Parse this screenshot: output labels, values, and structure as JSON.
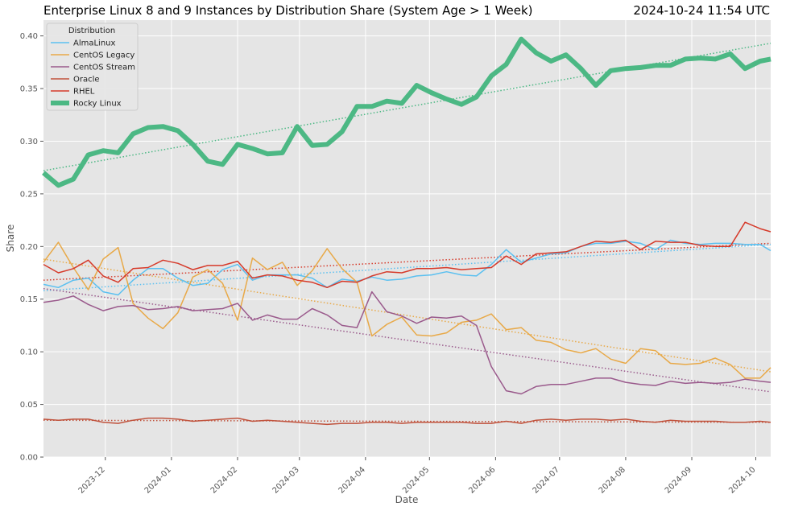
{
  "chart_data": {
    "type": "line",
    "title": "Enterprise Linux 8 and 9 Instances by Distribution Share (System Age > 1 Week)",
    "timestamp": "2024-10-24 11:54 UTC",
    "xlabel": "Date",
    "ylabel": "Share",
    "xlim": [
      "2023-11-02",
      "2024-10-08"
    ],
    "ylim": [
      0,
      0.415
    ],
    "x_ticks": [
      "2023-12",
      "2024-01",
      "2024-02",
      "2024-03",
      "2024-04",
      "2024-05",
      "2024-06",
      "2024-07",
      "2024-08",
      "2024-09",
      "2024-10"
    ],
    "y_ticks": [
      "0.00",
      "0.05",
      "0.10",
      "0.15",
      "0.20",
      "0.25",
      "0.30",
      "0.35",
      "0.40"
    ],
    "grid": true,
    "legend": {
      "title": "Distribution",
      "position": "top-left"
    },
    "x": [
      "2023-11-02",
      "2023-11-09",
      "2023-11-16",
      "2023-11-23",
      "2023-11-30",
      "2023-12-07",
      "2023-12-14",
      "2023-12-21",
      "2023-12-28",
      "2024-01-04",
      "2024-01-11",
      "2024-01-18",
      "2024-01-25",
      "2024-02-01",
      "2024-02-08",
      "2024-02-15",
      "2024-02-22",
      "2024-02-29",
      "2024-03-07",
      "2024-03-14",
      "2024-03-21",
      "2024-03-28",
      "2024-04-04",
      "2024-04-11",
      "2024-04-18",
      "2024-04-25",
      "2024-05-02",
      "2024-05-09",
      "2024-05-16",
      "2024-05-23",
      "2024-05-30",
      "2024-06-06",
      "2024-06-13",
      "2024-06-20",
      "2024-06-27",
      "2024-07-04",
      "2024-07-11",
      "2024-07-18",
      "2024-07-25",
      "2024-08-01",
      "2024-08-08",
      "2024-08-15",
      "2024-08-22",
      "2024-08-29",
      "2024-09-05",
      "2024-09-12",
      "2024-09-19",
      "2024-09-26",
      "2024-10-03",
      "2024-10-08"
    ],
    "series": [
      {
        "name": "AlmaLinux",
        "color": "#5bc0f0",
        "width": 1.5,
        "values": [
          0.164,
          0.161,
          0.168,
          0.17,
          0.157,
          0.154,
          0.168,
          0.179,
          0.179,
          0.17,
          0.163,
          0.165,
          0.178,
          0.183,
          0.168,
          0.173,
          0.173,
          0.173,
          0.17,
          0.161,
          0.169,
          0.167,
          0.171,
          0.168,
          0.169,
          0.172,
          0.173,
          0.176,
          0.173,
          0.172,
          0.183,
          0.197,
          0.185,
          0.189,
          0.193,
          0.194,
          0.2,
          0.203,
          0.203,
          0.205,
          0.203,
          0.197,
          0.206,
          0.203,
          0.202,
          0.203,
          0.203,
          0.202,
          0.202,
          0.196
        ],
        "trend": [
          0.158,
          0.202
        ]
      },
      {
        "name": "CentOS Legacy",
        "color": "#e8a948",
        "width": 1.5,
        "values": [
          0.185,
          0.204,
          0.18,
          0.159,
          0.188,
          0.199,
          0.146,
          0.132,
          0.122,
          0.137,
          0.171,
          0.178,
          0.165,
          0.13,
          0.189,
          0.178,
          0.185,
          0.163,
          0.177,
          0.198,
          0.179,
          0.166,
          0.115,
          0.126,
          0.133,
          0.116,
          0.115,
          0.118,
          0.128,
          0.13,
          0.136,
          0.121,
          0.123,
          0.111,
          0.109,
          0.102,
          0.099,
          0.103,
          0.093,
          0.089,
          0.103,
          0.101,
          0.089,
          0.088,
          0.089,
          0.094,
          0.088,
          0.075,
          0.075,
          0.085
        ],
        "trend": [
          0.188,
          0.081
        ]
      },
      {
        "name": "CentOS Stream",
        "color": "#9a5a8c",
        "width": 1.5,
        "values": [
          0.147,
          0.149,
          0.153,
          0.145,
          0.139,
          0.143,
          0.144,
          0.14,
          0.141,
          0.143,
          0.139,
          0.14,
          0.141,
          0.146,
          0.13,
          0.135,
          0.131,
          0.131,
          0.141,
          0.135,
          0.125,
          0.123,
          0.157,
          0.138,
          0.134,
          0.127,
          0.133,
          0.132,
          0.134,
          0.125,
          0.086,
          0.063,
          0.06,
          0.067,
          0.069,
          0.069,
          0.072,
          0.075,
          0.075,
          0.071,
          0.069,
          0.068,
          0.072,
          0.07,
          0.071,
          0.07,
          0.071,
          0.074,
          0.072,
          0.071
        ],
        "trend": [
          0.16,
          0.062
        ]
      },
      {
        "name": "Oracle",
        "color": "#c0523c",
        "width": 1.5,
        "values": [
          0.036,
          0.035,
          0.036,
          0.036,
          0.033,
          0.032,
          0.035,
          0.037,
          0.037,
          0.036,
          0.034,
          0.035,
          0.036,
          0.037,
          0.034,
          0.035,
          0.034,
          0.033,
          0.032,
          0.031,
          0.032,
          0.032,
          0.033,
          0.033,
          0.032,
          0.033,
          0.033,
          0.033,
          0.033,
          0.032,
          0.032,
          0.034,
          0.032,
          0.035,
          0.036,
          0.035,
          0.036,
          0.036,
          0.035,
          0.036,
          0.034,
          0.033,
          0.035,
          0.034,
          0.034,
          0.034,
          0.033,
          0.033,
          0.034,
          0.033
        ],
        "trend": [
          0.035,
          0.033
        ]
      },
      {
        "name": "RHEL",
        "color": "#d63a2a",
        "width": 1.5,
        "values": [
          0.183,
          0.175,
          0.179,
          0.187,
          0.172,
          0.166,
          0.179,
          0.18,
          0.187,
          0.184,
          0.178,
          0.182,
          0.182,
          0.186,
          0.17,
          0.173,
          0.172,
          0.168,
          0.166,
          0.161,
          0.167,
          0.166,
          0.172,
          0.176,
          0.175,
          0.179,
          0.179,
          0.18,
          0.178,
          0.179,
          0.18,
          0.191,
          0.183,
          0.193,
          0.194,
          0.195,
          0.2,
          0.205,
          0.204,
          0.206,
          0.197,
          0.205,
          0.204,
          0.204,
          0.201,
          0.2,
          0.2,
          0.223,
          0.217,
          0.214
        ],
        "trend": [
          0.168,
          0.203
        ]
      },
      {
        "name": "Rocky Linux",
        "color": "#4cb884",
        "width": 6,
        "values": [
          0.27,
          0.258,
          0.264,
          0.287,
          0.291,
          0.289,
          0.307,
          0.313,
          0.314,
          0.31,
          0.297,
          0.281,
          0.278,
          0.297,
          0.293,
          0.288,
          0.289,
          0.314,
          0.296,
          0.297,
          0.309,
          0.333,
          0.333,
          0.338,
          0.336,
          0.353,
          0.346,
          0.34,
          0.335,
          0.342,
          0.362,
          0.373,
          0.397,
          0.384,
          0.376,
          0.382,
          0.369,
          0.353,
          0.367,
          0.369,
          0.37,
          0.372,
          0.372,
          0.378,
          0.379,
          0.378,
          0.383,
          0.369,
          0.376,
          0.378
        ],
        "trend": [
          0.272,
          0.393
        ]
      }
    ]
  }
}
